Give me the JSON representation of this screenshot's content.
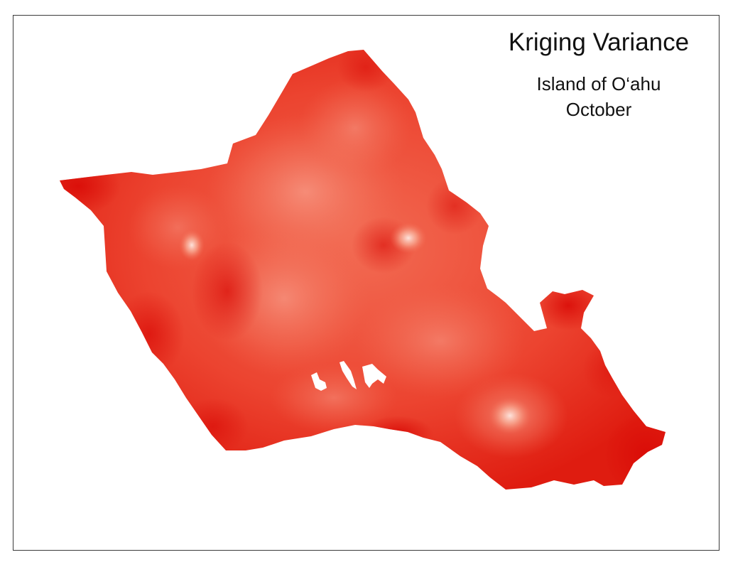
{
  "map": {
    "title": "Kriging Variance",
    "location": "Island of O‘ahu",
    "month": "October"
  },
  "colors": {
    "high_variance": "#e00f0a",
    "mid_variance": "#ef4a36",
    "low_variance": "#f7a08e",
    "frame": "#3a3a3a",
    "background": "#ffffff"
  },
  "legend": {
    "symbology": "stretched red ramp — darker red is higher variance, lighter is lower"
  }
}
